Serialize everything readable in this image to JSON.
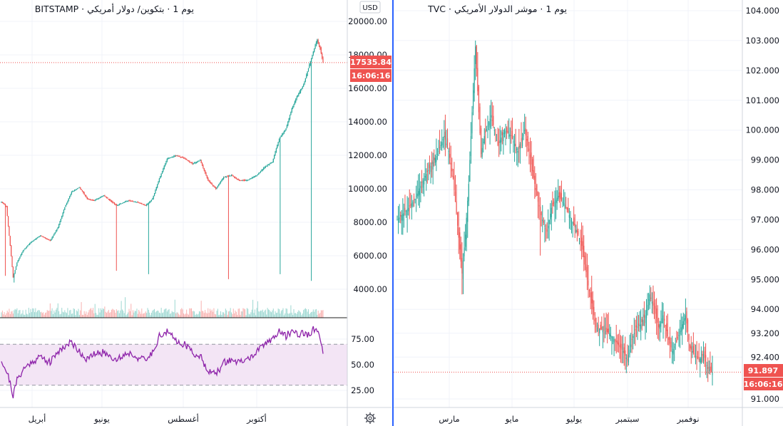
{
  "colors": {
    "up": "#26a69a",
    "down": "#ef5350",
    "rsi_line": "#8e24aa",
    "rsi_band": "#f3e5f5",
    "grid": "#f0f3fa",
    "axis_text": "#131722",
    "label_bg": "#ef5350",
    "divider_active": "#2962ff"
  },
  "left_chart": {
    "symbol_title": "BITSTAMP · يوم 1 · بتكوين/ دولار أمريكي",
    "currency_badge": "USD",
    "last_price_label": "17535.84",
    "last_time_label": "16:06:16",
    "settings_icon": "gear-icon"
  },
  "right_chart": {
    "symbol_title": "TVC · يوم 1 · موشر الدولار الأمريكي",
    "last_price_label": "91.897",
    "last_time_label": "16:06:16"
  },
  "chart_data": [
    {
      "type": "candlestick",
      "name": "BTC/USD daily (BITSTAMP)",
      "y_ticks": [
        "20000.00",
        "18000.00",
        "16000.00",
        "14000.00",
        "12000.00",
        "10000.00",
        "8000.00",
        "6000.00",
        "4000.00"
      ],
      "ylim": [
        2400,
        20500
      ],
      "x_ticks": [
        "أبريل",
        "يونيو",
        "أغسطس",
        "أكتوبر"
      ],
      "last_value": 17535.84,
      "trend": [
        [
          0,
          9200
        ],
        [
          5,
          8950
        ],
        [
          9,
          6600
        ],
        [
          12,
          4700
        ],
        [
          16,
          5600
        ],
        [
          22,
          6300
        ],
        [
          30,
          6800
        ],
        [
          40,
          7200
        ],
        [
          50,
          6900
        ],
        [
          58,
          7700
        ],
        [
          65,
          8900
        ],
        [
          72,
          9800
        ],
        [
          80,
          10100
        ],
        [
          88,
          9400
        ],
        [
          95,
          9300
        ],
        [
          105,
          9600
        ],
        [
          118,
          9000
        ],
        [
          130,
          9300
        ],
        [
          140,
          9200
        ],
        [
          148,
          9000
        ],
        [
          155,
          9400
        ],
        [
          162,
          10600
        ],
        [
          170,
          11800
        ],
        [
          180,
          12000
        ],
        [
          188,
          11800
        ],
        [
          196,
          11500
        ],
        [
          204,
          11700
        ],
        [
          212,
          10500
        ],
        [
          220,
          10000
        ],
        [
          228,
          10700
        ],
        [
          236,
          10800
        ],
        [
          244,
          10500
        ],
        [
          252,
          10500
        ],
        [
          262,
          10800
        ],
        [
          270,
          11300
        ],
        [
          278,
          11600
        ],
        [
          285,
          13000
        ],
        [
          292,
          13600
        ],
        [
          298,
          14800
        ],
        [
          304,
          15600
        ],
        [
          310,
          16200
        ],
        [
          315,
          17200
        ],
        [
          320,
          18200
        ],
        [
          324,
          18900
        ],
        [
          327,
          18400
        ],
        [
          330,
          17535
        ]
      ],
      "volume_note": "volume histogram at bottom of price pane",
      "spikes": [
        [
          4,
          4800
        ],
        [
          13,
          4400
        ],
        [
          118,
          5100
        ],
        [
          151,
          4900
        ],
        [
          233,
          4600
        ],
        [
          286,
          4900
        ],
        [
          318,
          4500
        ]
      ]
    },
    {
      "type": "line",
      "name": "RSI (14)",
      "y_ticks": [
        "75.00",
        "50.00",
        "25.00"
      ],
      "ylim": [
        14,
        92
      ],
      "band": [
        30,
        70
      ],
      "trend": [
        [
          0,
          55
        ],
        [
          3,
          48
        ],
        [
          6,
          42
        ],
        [
          9,
          32
        ],
        [
          12,
          20
        ],
        [
          16,
          35
        ],
        [
          22,
          45
        ],
        [
          30,
          52
        ],
        [
          40,
          58
        ],
        [
          50,
          52
        ],
        [
          58,
          63
        ],
        [
          65,
          68
        ],
        [
          72,
          72
        ],
        [
          80,
          63
        ],
        [
          88,
          55
        ],
        [
          95,
          60
        ],
        [
          105,
          62
        ],
        [
          118,
          55
        ],
        [
          130,
          62
        ],
        [
          140,
          57
        ],
        [
          148,
          54
        ],
        [
          155,
          62
        ],
        [
          162,
          78
        ],
        [
          170,
          82
        ],
        [
          180,
          73
        ],
        [
          188,
          70
        ],
        [
          196,
          62
        ],
        [
          204,
          58
        ],
        [
          212,
          45
        ],
        [
          220,
          40
        ],
        [
          228,
          52
        ],
        [
          236,
          55
        ],
        [
          244,
          52
        ],
        [
          252,
          55
        ],
        [
          262,
          62
        ],
        [
          270,
          70
        ],
        [
          278,
          76
        ],
        [
          285,
          82
        ],
        [
          292,
          78
        ],
        [
          298,
          83
        ],
        [
          304,
          80
        ],
        [
          310,
          81
        ],
        [
          315,
          79
        ],
        [
          320,
          84
        ],
        [
          324,
          82
        ],
        [
          327,
          78
        ],
        [
          330,
          60
        ]
      ]
    },
    {
      "type": "candlestick",
      "name": "U.S. Dollar Index daily (TVC)",
      "y_ticks": [
        "104.000",
        "103.000",
        "102.000",
        "101.000",
        "100.000",
        "99.000",
        "98.000",
        "97.000",
        "96.000",
        "95.000",
        "94.000",
        "93.200",
        "92.400",
        "91.000"
      ],
      "ylim": [
        90.6,
        104.3
      ],
      "x_ticks": [
        "مارس",
        "مايو",
        "يوليو",
        "سبتمبر",
        "نوفمبر"
      ],
      "last_value": 91.897,
      "trend": [
        [
          0,
          97.0
        ],
        [
          8,
          97.3
        ],
        [
          16,
          97.7
        ],
        [
          24,
          98.4
        ],
        [
          30,
          98.8
        ],
        [
          36,
          99.2
        ],
        [
          42,
          99.8
        ],
        [
          46,
          99.3
        ],
        [
          50,
          98.4
        ],
        [
          53,
          97.2
        ],
        [
          56,
          96.0
        ],
        [
          58,
          95.2
        ],
        [
          61,
          96.5
        ],
        [
          64,
          98.2
        ],
        [
          67,
          100.6
        ],
        [
          70,
          102.8
        ],
        [
          72,
          101.3
        ],
        [
          75,
          99.2
        ],
        [
          78,
          99.8
        ],
        [
          84,
          100.5
        ],
        [
          90,
          99.5
        ],
        [
          96,
          100.0
        ],
        [
          102,
          99.8
        ],
        [
          108,
          99.3
        ],
        [
          114,
          100.0
        ],
        [
          118,
          99.3
        ],
        [
          122,
          98.4
        ],
        [
          126,
          97.6
        ],
        [
          130,
          97.0
        ],
        [
          134,
          96.6
        ],
        [
          138,
          97.4
        ],
        [
          144,
          97.8
        ],
        [
          150,
          97.5
        ],
        [
          156,
          97.0
        ],
        [
          162,
          96.5
        ],
        [
          166,
          96.0
        ],
        [
          170,
          95.0
        ],
        [
          174,
          94.2
        ],
        [
          178,
          93.4
        ],
        [
          184,
          93.3
        ],
        [
          190,
          93.2
        ],
        [
          196,
          92.9
        ],
        [
          202,
          92.6
        ],
        [
          206,
          92.3
        ],
        [
          210,
          93.0
        ],
        [
          214,
          93.4
        ],
        [
          218,
          93.5
        ],
        [
          222,
          93.8
        ],
        [
          226,
          94.5
        ],
        [
          230,
          94.0
        ],
        [
          234,
          93.4
        ],
        [
          238,
          93.8
        ],
        [
          242,
          93.1
        ],
        [
          246,
          92.6
        ],
        [
          250,
          92.9
        ],
        [
          254,
          93.4
        ],
        [
          258,
          93.8
        ],
        [
          262,
          92.7
        ],
        [
          266,
          92.5
        ],
        [
          270,
          92.3
        ],
        [
          274,
          92.5
        ],
        [
          278,
          92.0
        ],
        [
          282,
          91.897
        ]
      ],
      "spikes": [
        [
          58,
          94.5
        ],
        [
          70,
          103.0
        ],
        [
          128,
          95.8
        ],
        [
          226,
          94.8
        ],
        [
          258,
          94.3
        ]
      ]
    }
  ]
}
